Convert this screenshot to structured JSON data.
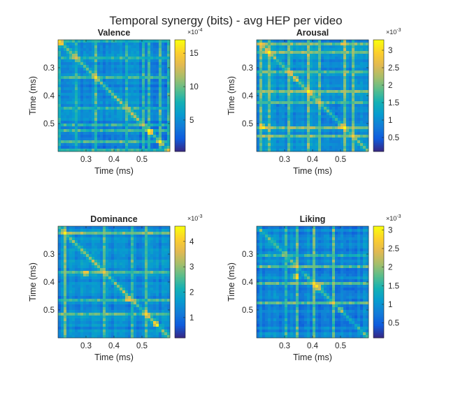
{
  "figure": {
    "title": "Temporal synergy (bits) - avg HEP per video"
  },
  "chart_data": [
    {
      "type": "heatmap",
      "title": "Valence",
      "xlabel": "Time (ms)",
      "ylabel": "Time (ms)",
      "x_range": [
        0.2,
        0.6
      ],
      "y_range": [
        0.2,
        0.6
      ],
      "y_reversed": true,
      "xticks": [
        "0.3",
        "0.4",
        "0.5"
      ],
      "yticks": [
        "0.3",
        "0.4",
        "0.5"
      ],
      "grid_size": 40,
      "colormap": "parula",
      "colorbar": {
        "ticks": [
          "5",
          "10",
          "15"
        ],
        "tick_values": [
          5,
          10,
          15
        ],
        "range": [
          0.3,
          17
        ],
        "exponent": "-4"
      },
      "value_range": [
        3e-05,
        0.0017
      ],
      "hotspots": [
        {
          "x": 0.56,
          "y": 0.56,
          "level": 0.95,
          "spread": 0.006
        },
        {
          "x": 0.53,
          "y": 0.53,
          "level": 0.6,
          "spread": 0.012
        },
        {
          "x": 0.21,
          "y": 0.21,
          "level": 0.5,
          "spread": 0.01
        },
        {
          "x": 0.58,
          "y": 0.58,
          "level": 0.8,
          "spread": 0.004
        }
      ],
      "stripes": [
        0.205,
        0.26,
        0.33,
        0.44,
        0.5,
        0.52,
        0.56,
        0.59
      ],
      "diagonal_level": 0.45,
      "base_level": 0.08
    },
    {
      "type": "heatmap",
      "title": "Arousal",
      "xlabel": "Time (ms)",
      "ylabel": "Time (ms)",
      "x_range": [
        0.2,
        0.6
      ],
      "y_range": [
        0.2,
        0.6
      ],
      "y_reversed": true,
      "xticks": [
        "0.3",
        "0.4",
        "0.5"
      ],
      "yticks": [
        "0.3",
        "0.4",
        "0.5"
      ],
      "grid_size": 40,
      "colormap": "parula",
      "colorbar": {
        "ticks": [
          "0.5",
          "1",
          "1.5",
          "2",
          "2.5",
          "3"
        ],
        "tick_values": [
          0.5,
          1,
          1.5,
          2,
          2.5,
          3
        ],
        "range": [
          0.1,
          3.3
        ],
        "exponent": "-3"
      },
      "value_range": [
        0.0001,
        0.0033
      ],
      "hotspots": [
        {
          "x": 0.5,
          "y": 0.51,
          "level": 0.95,
          "spread": 0.008
        },
        {
          "x": 0.22,
          "y": 0.51,
          "level": 0.75,
          "spread": 0.01
        },
        {
          "x": 0.51,
          "y": 0.21,
          "level": 0.85,
          "spread": 0.008
        },
        {
          "x": 0.34,
          "y": 0.34,
          "level": 0.55,
          "spread": 0.01
        }
      ],
      "stripes": [
        0.21,
        0.24,
        0.31,
        0.38,
        0.42,
        0.51,
        0.54
      ],
      "diagonal_level": 0.35,
      "base_level": 0.15
    },
    {
      "type": "heatmap",
      "title": "Dominance",
      "xlabel": "Time (ms)",
      "ylabel": "Time (ms)",
      "x_range": [
        0.2,
        0.6
      ],
      "y_range": [
        0.2,
        0.6
      ],
      "y_reversed": true,
      "xticks": [
        "0.3",
        "0.4",
        "0.5"
      ],
      "yticks": [
        "0.3",
        "0.4",
        "0.5"
      ],
      "grid_size": 40,
      "colormap": "parula",
      "colorbar": {
        "ticks": [
          "1",
          "2",
          "3",
          "4"
        ],
        "tick_values": [
          1,
          2,
          3,
          4
        ],
        "range": [
          0.2,
          4.6
        ],
        "exponent": "-3"
      },
      "value_range": [
        0.0002,
        0.0046
      ],
      "hotspots": [
        {
          "x": 0.36,
          "y": 0.36,
          "level": 0.85,
          "spread": 0.006
        },
        {
          "x": 0.3,
          "y": 0.37,
          "level": 0.55,
          "spread": 0.012
        },
        {
          "x": 0.45,
          "y": 0.46,
          "level": 0.6,
          "spread": 0.012
        },
        {
          "x": 0.55,
          "y": 0.55,
          "level": 0.55,
          "spread": 0.012
        }
      ],
      "stripes": [
        0.22,
        0.36,
        0.46,
        0.51
      ],
      "diagonal_level": 0.4,
      "base_level": 0.12
    },
    {
      "type": "heatmap",
      "title": "Liking",
      "xlabel": "Time (ms)",
      "ylabel": "Time (ms)",
      "x_range": [
        0.2,
        0.6
      ],
      "y_range": [
        0.2,
        0.6
      ],
      "y_reversed": true,
      "xticks": [
        "0.3",
        "0.4",
        "0.5"
      ],
      "yticks": [
        "0.3",
        "0.4",
        "0.5"
      ],
      "grid_size": 40,
      "colormap": "parula",
      "colorbar": {
        "ticks": [
          "0.5",
          "1",
          "1.5",
          "2",
          "2.5",
          "3"
        ],
        "tick_values": [
          0.5,
          1,
          1.5,
          2,
          2.5,
          3
        ],
        "range": [
          0.1,
          3.1
        ],
        "exponent": "-3"
      },
      "value_range": [
        0.0001,
        0.0031
      ],
      "hotspots": [
        {
          "x": 0.42,
          "y": 0.42,
          "level": 0.55,
          "spread": 0.02
        },
        {
          "x": 0.5,
          "y": 0.5,
          "level": 0.5,
          "spread": 0.01
        },
        {
          "x": 0.34,
          "y": 0.38,
          "level": 0.45,
          "spread": 0.015
        }
      ],
      "stripes": [
        0.3,
        0.34,
        0.4,
        0.47
      ],
      "diagonal_level": 0.3,
      "base_level": 0.1
    }
  ]
}
